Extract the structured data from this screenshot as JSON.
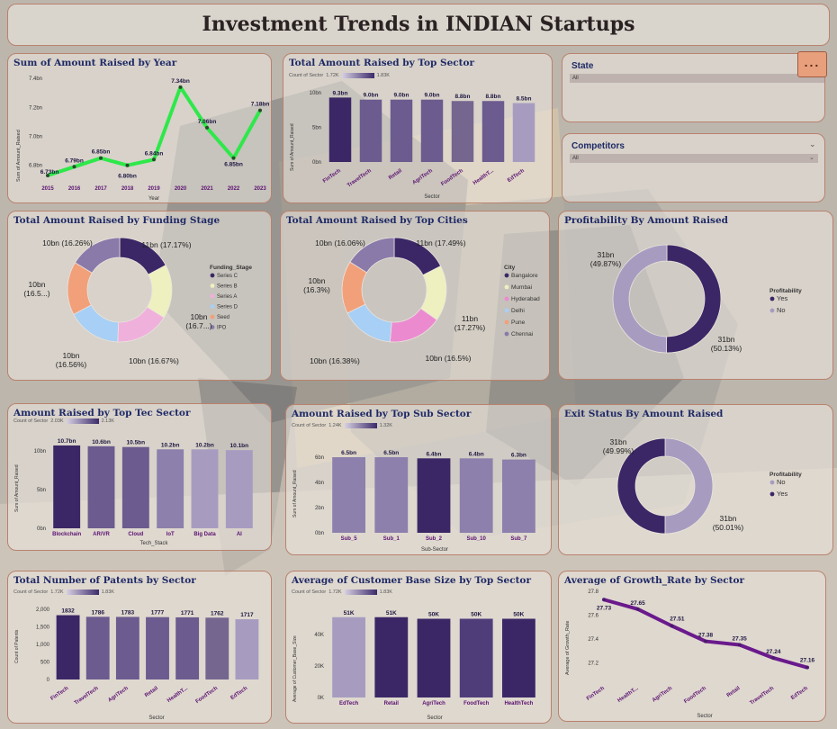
{
  "title": "Investment Trends in INDIAN Startups",
  "colors": {
    "dark": "#3b2766",
    "mid": "#6b5b8f",
    "light": "#a79cc0",
    "line_green": "#2ee84a",
    "line_purple": "#6a1a8c"
  },
  "year_chart": {
    "title": "Sum of Amount Raised by Year",
    "ylabel": "Sum of Amount_Raised",
    "xlabel": "Year",
    "ticks": [
      "7.4bn",
      "7.2bn",
      "7.0bn",
      "6.8bn"
    ],
    "points": [
      {
        "x": "2015",
        "label": "6.73bn",
        "v": 6.73
      },
      {
        "x": "2016",
        "label": "6.79bn",
        "v": 6.79
      },
      {
        "x": "2017",
        "label": "6.85bn",
        "v": 6.85
      },
      {
        "x": "2018",
        "label": "6.80bn",
        "v": 6.8
      },
      {
        "x": "2019",
        "label": "6.84bn",
        "v": 6.84
      },
      {
        "x": "2020",
        "label": "7.34bn",
        "v": 7.34
      },
      {
        "x": "2021",
        "label": "7.06bn",
        "v": 7.06
      },
      {
        "x": "2022",
        "label": "6.85bn",
        "v": 6.85
      },
      {
        "x": "2023",
        "label": "7.18bn",
        "v": 7.18
      }
    ]
  },
  "sector_chart": {
    "title": "Total Amount Raised by Top Sector",
    "legend_label": "Count of Sector",
    "legend_min": "1.72K",
    "legend_max": "1.83K",
    "ylabel": "Sum of Amount_Raised",
    "xlabel": "Sector",
    "ticks": [
      "10bn",
      "5bn",
      "0bn"
    ],
    "bars": [
      {
        "cat": "FinTech",
        "label": "9.3bn",
        "v": 9.3,
        "shade": "#3b2766"
      },
      {
        "cat": "TravelTech",
        "label": "9.0bn",
        "v": 9.0,
        "shade": "#6b5b8f"
      },
      {
        "cat": "Retail",
        "label": "9.0bn",
        "v": 9.0,
        "shade": "#6b5b8f"
      },
      {
        "cat": "AgriTech",
        "label": "9.0bn",
        "v": 9.0,
        "shade": "#6b5b8f"
      },
      {
        "cat": "FoodTech",
        "label": "8.8bn",
        "v": 8.8,
        "shade": "#74668f"
      },
      {
        "cat": "HealthT...",
        "label": "8.8bn",
        "v": 8.8,
        "shade": "#6b5b8f"
      },
      {
        "cat": "EdTech",
        "label": "8.5bn",
        "v": 8.5,
        "shade": "#a79cc0"
      }
    ]
  },
  "state_slicer": {
    "label": "State",
    "value": "All"
  },
  "competitors_slicer": {
    "label": "Competitors",
    "value": "All"
  },
  "more_options": "...",
  "funding_donut": {
    "title": "Total Amount Raised by Funding Stage",
    "legend_title": "Funding_Stage",
    "slices": [
      {
        "name": "Series C",
        "v": 17.17,
        "color": "#3b2766"
      },
      {
        "name": "Series B",
        "v": 16.7,
        "color": "#eef0c0"
      },
      {
        "name": "Series A",
        "v": 16.67,
        "color": "#f0b0dc"
      },
      {
        "name": "Series D",
        "v": 16.56,
        "color": "#a8cff5"
      },
      {
        "name": "Seed",
        "v": 16.5,
        "color": "#f2a07a"
      },
      {
        "name": "IPO",
        "v": 16.26,
        "color": "#8a7aaa"
      }
    ],
    "labels": [
      "11bn (17.17%)",
      "10bn (16.7...)",
      "10bn (16.67%)",
      "10bn (16.56%)",
      "10bn (16.5...)",
      "10bn (16.26%)"
    ]
  },
  "cities_donut": {
    "title": "Total Amount Raised by Top Cities",
    "legend_title": "City",
    "slices": [
      {
        "name": "Bangalore",
        "v": 17.49,
        "color": "#3b2766"
      },
      {
        "name": "Mumbai",
        "v": 17.27,
        "color": "#eef0c0"
      },
      {
        "name": "Hyderabad",
        "v": 16.5,
        "color": "#ec8ad0"
      },
      {
        "name": "Delhi",
        "v": 16.38,
        "color": "#a8cff5"
      },
      {
        "name": "Pune",
        "v": 16.3,
        "color": "#f2a07a"
      },
      {
        "name": "Chennai",
        "v": 16.06,
        "color": "#8a7aaa"
      }
    ],
    "labels": [
      "11bn (17.49%)",
      "11bn (17.27%)",
      "10bn (16.5%)",
      "10bn (16.38%)",
      "10bn (16.3%)",
      "10bn (16.06%)"
    ]
  },
  "profit_donut": {
    "title": "Profitability By Amount Raised",
    "legend_title": "Profitability",
    "slices": [
      {
        "name": "Yes",
        "v": 50.13,
        "color": "#3b2766"
      },
      {
        "name": "No",
        "v": 49.87,
        "color": "#a79cc0"
      }
    ],
    "labels": [
      "31bn (50.13%)",
      "31bn (49.87%)"
    ]
  },
  "exit_donut": {
    "title": "Exit Status By Amount Raised",
    "legend_title": "Profitability",
    "slices": [
      {
        "name": "No",
        "v": 50.01,
        "color": "#a79cc0"
      },
      {
        "name": "Yes",
        "v": 49.99,
        "color": "#3b2766"
      }
    ],
    "labels": [
      "31bn (50.01%)",
      "31bn (49.99%)"
    ]
  },
  "tech_chart": {
    "title": "Amount Raised by Top Tec Sector",
    "legend_label": "Count of Sector",
    "legend_min": "2.03K",
    "legend_max": "2.13K",
    "ylabel": "Sum of Amount_Raised",
    "xlabel": "Tech_Stack",
    "ticks": [
      "10bn",
      "5bn",
      "0bn"
    ],
    "bars": [
      {
        "cat": "Blockchain",
        "label": "10.7bn",
        "v": 10.7,
        "shade": "#3b2766"
      },
      {
        "cat": "AR/VR",
        "label": "10.6bn",
        "v": 10.6,
        "shade": "#6b5b8f"
      },
      {
        "cat": "Cloud",
        "label": "10.5bn",
        "v": 10.5,
        "shade": "#6b5b8f"
      },
      {
        "cat": "IoT",
        "label": "10.2bn",
        "v": 10.2,
        "shade": "#8d80ac"
      },
      {
        "cat": "Big Data",
        "label": "10.2bn",
        "v": 10.2,
        "shade": "#a79cc0"
      },
      {
        "cat": "AI",
        "label": "10.1bn",
        "v": 10.1,
        "shade": "#a79cc0"
      }
    ]
  },
  "subsector_chart": {
    "title": "Amount Raised by Top Sub Sector",
    "legend_label": "Count of Sector",
    "legend_min": "1.24K",
    "legend_max": "1.32K",
    "ylabel": "Sum of Amount_Raised",
    "xlabel": "Sub-Sector",
    "ticks": [
      "6bn",
      "4bn",
      "2bn",
      "0bn"
    ],
    "bars": [
      {
        "cat": "Sub_5",
        "label": "6.5bn",
        "v": 6.5,
        "shade": "#8d80ac"
      },
      {
        "cat": "Sub_1",
        "label": "6.5bn",
        "v": 6.5,
        "shade": "#8d80ac"
      },
      {
        "cat": "Sub_2",
        "label": "6.4bn",
        "v": 6.4,
        "shade": "#3b2766"
      },
      {
        "cat": "Sub_10",
        "label": "6.4bn",
        "v": 6.4,
        "shade": "#8d80ac"
      },
      {
        "cat": "Sub_7",
        "label": "6.3bn",
        "v": 6.3,
        "shade": "#8d80ac"
      }
    ]
  },
  "patents_chart": {
    "title": "Total Number of Patents by Sector",
    "legend_label": "Count of Sector",
    "legend_min": "1.72K",
    "legend_max": "1.83K",
    "ylabel": "Count of Patents",
    "xlabel": "Sector",
    "ticks": [
      "2,000",
      "1,500",
      "1,000",
      "500",
      "0"
    ],
    "bars": [
      {
        "cat": "FinTech",
        "label": "1832",
        "v": 1832,
        "shade": "#3b2766"
      },
      {
        "cat": "TravelTech",
        "label": "1786",
        "v": 1786,
        "shade": "#6b5b8f"
      },
      {
        "cat": "AgriTech",
        "label": "1783",
        "v": 1783,
        "shade": "#6b5b8f"
      },
      {
        "cat": "Retail",
        "label": "1777",
        "v": 1777,
        "shade": "#6b5b8f"
      },
      {
        "cat": "HealthT...",
        "label": "1771",
        "v": 1771,
        "shade": "#6b5b8f"
      },
      {
        "cat": "FoodTech",
        "label": "1762",
        "v": 1762,
        "shade": "#74668f"
      },
      {
        "cat": "EdTech",
        "label": "1717",
        "v": 1717,
        "shade": "#a79cc0"
      }
    ]
  },
  "customer_chart": {
    "title": "Average of Customer Base Size by Top Sector",
    "legend_label": "Count of Sector",
    "legend_min": "1.72K",
    "legend_max": "1.83K",
    "ylabel": "Average of Customer_Base_Size",
    "xlabel": "Sector",
    "ticks": [
      "40K",
      "20K",
      "0K"
    ],
    "bars": [
      {
        "cat": "EdTech",
        "label": "51K",
        "v": 51,
        "shade": "#a79cc0"
      },
      {
        "cat": "Retail",
        "label": "51K",
        "v": 51,
        "shade": "#3b2766"
      },
      {
        "cat": "AgriTech",
        "label": "50K",
        "v": 50,
        "shade": "#3b2766"
      },
      {
        "cat": "FoodTech",
        "label": "50K",
        "v": 50,
        "shade": "#4f3d7a"
      },
      {
        "cat": "HealthTech",
        "label": "50K",
        "v": 50,
        "shade": "#3b2766"
      }
    ]
  },
  "growth_chart": {
    "title": "Average of Growth_Rate by Sector",
    "ylabel": "Average of Growth_Rate",
    "xlabel": "Sector",
    "ticks": [
      "27.8",
      "27.6",
      "27.4",
      "27.2"
    ],
    "points": [
      {
        "x": "FinTech",
        "label": "27.73",
        "v": 27.73
      },
      {
        "x": "HealthT...",
        "label": "27.65",
        "v": 27.65
      },
      {
        "x": "AgriTech",
        "label": "27.51",
        "v": 27.51
      },
      {
        "x": "FoodTech",
        "label": "27.38",
        "v": 27.38
      },
      {
        "x": "Retail",
        "label": "27.35",
        "v": 27.35
      },
      {
        "x": "TravelTech",
        "label": "27.24",
        "v": 27.24
      },
      {
        "x": "EdTech",
        "label": "27.16",
        "v": 27.16
      }
    ]
  },
  "chart_data": [
    {
      "type": "line",
      "title": "Sum of Amount Raised by Year",
      "xlabel": "Year",
      "ylabel": "Sum of Amount_Raised",
      "x": [
        "2015",
        "2016",
        "2017",
        "2018",
        "2019",
        "2020",
        "2021",
        "2022",
        "2023"
      ],
      "values": [
        6.73,
        6.79,
        6.85,
        6.8,
        6.84,
        7.34,
        7.06,
        6.85,
        7.18
      ]
    },
    {
      "type": "bar",
      "title": "Total Amount Raised by Top Sector",
      "xlabel": "Sector",
      "ylabel": "Sum of Amount_Raised",
      "categories": [
        "FinTech",
        "TravelTech",
        "Retail",
        "AgriTech",
        "FoodTech",
        "HealthT...",
        "EdTech"
      ],
      "values": [
        9.3,
        9.0,
        9.0,
        9.0,
        8.8,
        8.8,
        8.5
      ]
    },
    {
      "type": "pie",
      "title": "Total Amount Raised by Funding Stage",
      "categories": [
        "Series C",
        "Series B",
        "Series A",
        "Series D",
        "Seed",
        "IPO"
      ],
      "values": [
        17.17,
        16.7,
        16.67,
        16.56,
        16.5,
        16.26
      ]
    },
    {
      "type": "pie",
      "title": "Total Amount Raised by Top Cities",
      "categories": [
        "Bangalore",
        "Mumbai",
        "Hyderabad",
        "Delhi",
        "Pune",
        "Chennai"
      ],
      "values": [
        17.49,
        17.27,
        16.5,
        16.38,
        16.3,
        16.06
      ]
    },
    {
      "type": "pie",
      "title": "Profitability By Amount Raised",
      "categories": [
        "Yes",
        "No"
      ],
      "values": [
        50.13,
        49.87
      ]
    },
    {
      "type": "bar",
      "title": "Amount Raised by Top Tec Sector",
      "xlabel": "Tech_Stack",
      "ylabel": "Sum of Amount_Raised",
      "categories": [
        "Blockchain",
        "AR/VR",
        "Cloud",
        "IoT",
        "Big Data",
        "AI"
      ],
      "values": [
        10.7,
        10.6,
        10.5,
        10.2,
        10.2,
        10.1
      ]
    },
    {
      "type": "bar",
      "title": "Amount Raised by Top Sub Sector",
      "xlabel": "Sub-Sector",
      "ylabel": "Sum of Amount_Raised",
      "categories": [
        "Sub_5",
        "Sub_1",
        "Sub_2",
        "Sub_10",
        "Sub_7"
      ],
      "values": [
        6.5,
        6.5,
        6.4,
        6.4,
        6.3
      ]
    },
    {
      "type": "pie",
      "title": "Exit Status By Amount Raised",
      "categories": [
        "No",
        "Yes"
      ],
      "values": [
        50.01,
        49.99
      ]
    },
    {
      "type": "bar",
      "title": "Total Number of Patents by Sector",
      "xlabel": "Sector",
      "ylabel": "Count of Patents",
      "categories": [
        "FinTech",
        "TravelTech",
        "AgriTech",
        "Retail",
        "HealthT...",
        "FoodTech",
        "EdTech"
      ],
      "values": [
        1832,
        1786,
        1783,
        1777,
        1771,
        1762,
        1717
      ]
    },
    {
      "type": "bar",
      "title": "Average of Customer Base Size by Top Sector",
      "xlabel": "Sector",
      "ylabel": "Average of Customer_Base_Size",
      "categories": [
        "EdTech",
        "Retail",
        "AgriTech",
        "FoodTech",
        "HealthTech"
      ],
      "values": [
        51,
        51,
        50,
        50,
        50
      ]
    },
    {
      "type": "line",
      "title": "Average of Growth_Rate by Sector",
      "xlabel": "Sector",
      "ylabel": "Average of Growth_Rate",
      "x": [
        "FinTech",
        "HealthT...",
        "AgriTech",
        "FoodTech",
        "Retail",
        "TravelTech",
        "EdTech"
      ],
      "values": [
        27.73,
        27.65,
        27.51,
        27.38,
        27.35,
        27.24,
        27.16
      ]
    }
  ]
}
